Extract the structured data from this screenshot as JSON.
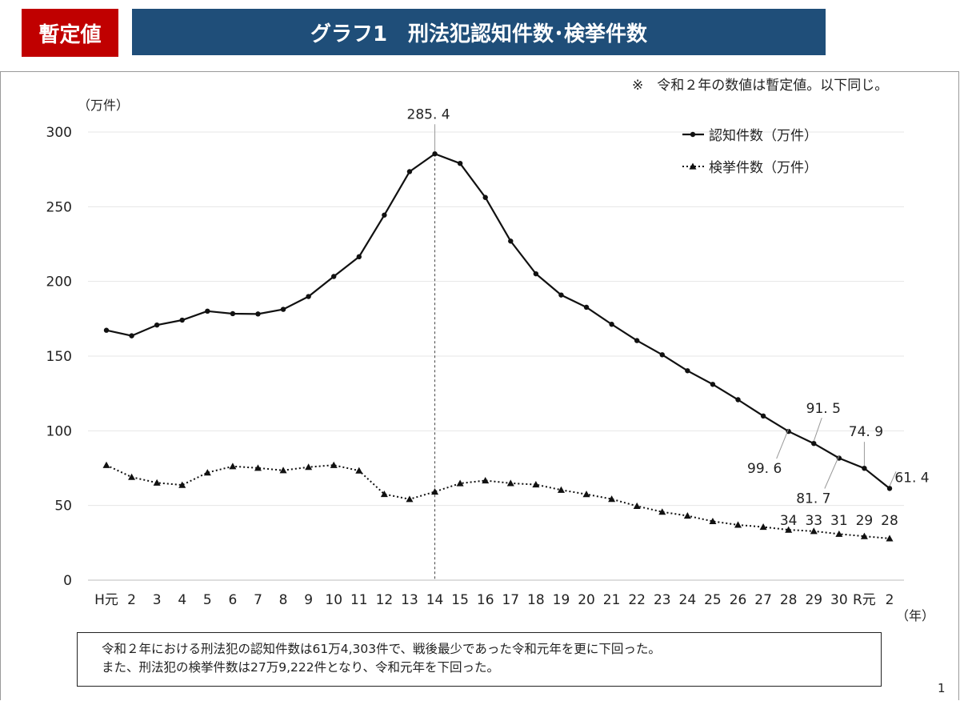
{
  "header": {
    "badge": "暫定値",
    "title": "グラフ1　刑法犯認知件数･検挙件数"
  },
  "note": "※　令和２年の数値は暫定値。以下同じ。",
  "chart_data": {
    "type": "line",
    "unit_label": "（万件）",
    "x_unit_label": "（年）",
    "categories": [
      "H元",
      "2",
      "3",
      "4",
      "5",
      "6",
      "7",
      "8",
      "9",
      "10",
      "11",
      "12",
      "13",
      "14",
      "15",
      "16",
      "17",
      "18",
      "19",
      "20",
      "21",
      "22",
      "23",
      "24",
      "25",
      "26",
      "27",
      "28",
      "29",
      "30",
      "R元",
      "2"
    ],
    "ylim": [
      0,
      300
    ],
    "yticks": [
      0,
      50,
      100,
      150,
      200,
      250,
      300
    ],
    "series": [
      {
        "name": "認知件数（万件）",
        "marker": "circle",
        "style": "solid",
        "values": [
          167.3,
          163.6,
          170.8,
          174.1,
          180.1,
          178.4,
          178.2,
          181.3,
          189.9,
          203.3,
          216.5,
          244.4,
          273.5,
          285.4,
          279.0,
          256.2,
          227.0,
          205.1,
          190.9,
          182.7,
          171.3,
          160.4,
          150.9,
          140.2,
          131.1,
          120.8,
          109.9,
          99.6,
          91.5,
          81.7,
          74.9,
          61.4
        ],
        "labels": [
          {
            "index": 13,
            "text": "285. 4"
          },
          {
            "index": 27,
            "text": "99. 6"
          },
          {
            "index": 28,
            "text": "91. 5"
          },
          {
            "index": 29,
            "text": "81. 7"
          },
          {
            "index": 30,
            "text": "74. 9"
          },
          {
            "index": 31,
            "text": "61. 4"
          }
        ]
      },
      {
        "name": "検挙件数（万件）",
        "marker": "triangle",
        "style": "dotted",
        "values": [
          77.0,
          69.0,
          65.2,
          63.7,
          72.0,
          76.2,
          75.1,
          73.5,
          75.7,
          77.0,
          73.3,
          57.6,
          54.2,
          59.2,
          64.8,
          66.7,
          64.9,
          64.0,
          60.4,
          57.5,
          54.3,
          49.6,
          45.7,
          43.1,
          39.4,
          37.0,
          35.6,
          33.7,
          32.8,
          30.9,
          29.4,
          27.9
        ],
        "labels": [
          {
            "index": 27,
            "text": "34"
          },
          {
            "index": 28,
            "text": "33"
          },
          {
            "index": 29,
            "text": "31"
          },
          {
            "index": 30,
            "text": "29"
          },
          {
            "index": 31,
            "text": "28"
          }
        ]
      }
    ],
    "reference_line_index": 13,
    "legend_position": "top-right"
  },
  "summary": {
    "line1": "令和２年における刑法犯の認知件数は61万4,303件で、戦後最少であった令和元年を更に下回った。",
    "line2": "また、刑法犯の検挙件数は27万9,222件となり、令和元年を下回った。"
  },
  "page_number": "1"
}
